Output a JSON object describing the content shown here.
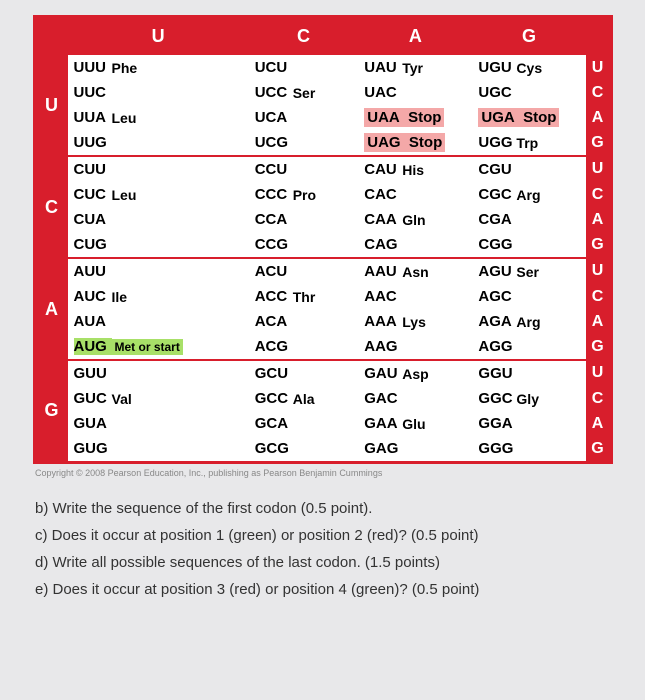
{
  "table": {
    "top_headers": [
      "U",
      "C",
      "A",
      "G"
    ],
    "left_headers": [
      "U",
      "C",
      "A",
      "G"
    ],
    "right_sub": [
      "U",
      "C",
      "A",
      "G"
    ],
    "rows": [
      {
        "left": "U",
        "cells": [
          {
            "codons": [
              "UUU",
              "UUC",
              "UUA",
              "UUG"
            ],
            "aas": [
              {
                "t": "Phe",
                "span": 2
              },
              {
                "t": "Leu",
                "span": 2
              }
            ]
          },
          {
            "codons": [
              "UCU",
              "UCC",
              "UCA",
              "UCG"
            ],
            "aas": [
              {
                "t": "Ser",
                "span": 4
              }
            ]
          },
          {
            "codons": [
              "UAU",
              "UAC",
              "UAA",
              "UAG"
            ],
            "aas": [
              {
                "t": "Tyr",
                "span": 2
              },
              {
                "t": "Stop",
                "span": 1,
                "stop": true
              },
              {
                "t": "Stop",
                "span": 1,
                "stop": true
              }
            ]
          },
          {
            "codons": [
              "UGU",
              "UGC",
              "UGA",
              "UGG"
            ],
            "aas": [
              {
                "t": "Cys",
                "span": 2
              },
              {
                "t": "Stop",
                "span": 1,
                "stop": true
              },
              {
                "t": "Trp",
                "span": 1
              }
            ]
          }
        ]
      },
      {
        "left": "C",
        "cells": [
          {
            "codons": [
              "CUU",
              "CUC",
              "CUA",
              "CUG"
            ],
            "aas": [
              {
                "t": "Leu",
                "span": 4
              }
            ]
          },
          {
            "codons": [
              "CCU",
              "CCC",
              "CCA",
              "CCG"
            ],
            "aas": [
              {
                "t": "Pro",
                "span": 4
              }
            ]
          },
          {
            "codons": [
              "CAU",
              "CAC",
              "CAA",
              "CAG"
            ],
            "aas": [
              {
                "t": "His",
                "span": 2
              },
              {
                "t": "Gln",
                "span": 2
              }
            ]
          },
          {
            "codons": [
              "CGU",
              "CGC",
              "CGA",
              "CGG"
            ],
            "aas": [
              {
                "t": "Arg",
                "span": 4
              }
            ]
          }
        ]
      },
      {
        "left": "A",
        "cells": [
          {
            "codons": [
              "AUU",
              "AUC",
              "AUA",
              "AUG"
            ],
            "aas": [
              {
                "t": "Ile",
                "span": 3
              },
              {
                "t": "Met or start",
                "span": 1,
                "start": true
              }
            ]
          },
          {
            "codons": [
              "ACU",
              "ACC",
              "ACA",
              "ACG"
            ],
            "aas": [
              {
                "t": "Thr",
                "span": 4
              }
            ]
          },
          {
            "codons": [
              "AAU",
              "AAC",
              "AAA",
              "AAG"
            ],
            "aas": [
              {
                "t": "Asn",
                "span": 2
              },
              {
                "t": "Lys",
                "span": 2
              }
            ]
          },
          {
            "codons": [
              "AGU",
              "AGC",
              "AGA",
              "AGG"
            ],
            "aas": [
              {
                "t": "Ser",
                "span": 2
              },
              {
                "t": "Arg",
                "span": 2
              }
            ]
          }
        ]
      },
      {
        "left": "G",
        "cells": [
          {
            "codons": [
              "GUU",
              "GUC",
              "GUA",
              "GUG"
            ],
            "aas": [
              {
                "t": "Val",
                "span": 4
              }
            ]
          },
          {
            "codons": [
              "GCU",
              "GCC",
              "GCA",
              "GCG"
            ],
            "aas": [
              {
                "t": "Ala",
                "span": 4
              }
            ]
          },
          {
            "codons": [
              "GAU",
              "GAC",
              "GAA",
              "GAG"
            ],
            "aas": [
              {
                "t": "Asp",
                "span": 2
              },
              {
                "t": "Glu",
                "span": 2
              }
            ]
          },
          {
            "codons": [
              "GGU",
              "GGC",
              "GGA",
              "GGG"
            ],
            "aas": [
              {
                "t": "Gly",
                "span": 4
              }
            ]
          }
        ]
      }
    ]
  },
  "copyright": "Copyright © 2008 Pearson Education, Inc., publishing as Pearson Benjamin Cummings",
  "questions": {
    "b": "b) Write the sequence of the first codon (0.5 point).",
    "c": "c) Does it occur at position 1 (green) or position 2 (red)? (0.5 point)",
    "d": "d) Write all possible sequences of the last codon. (1.5 points)",
    "e": "e) Does it occur at position 3 (red) or position 4 (green)? (0.5 point)"
  },
  "colors": {
    "red": "#d81e2c",
    "stop_bg": "#f4a8a8",
    "start_bg": "#a8e068",
    "page_bg": "#e8e8ea"
  }
}
